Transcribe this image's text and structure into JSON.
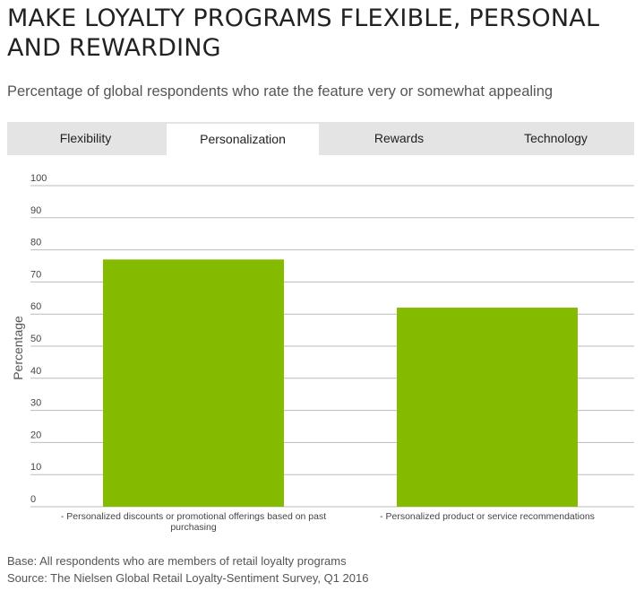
{
  "header": {
    "title": "MAKE LOYALTY PROGRAMS FLEXIBLE, PERSONAL AND REWARDING",
    "subtitle": "Percentage of global respondents who rate the feature very or somewhat appealing"
  },
  "tabs": [
    {
      "label": "Flexibility",
      "active": false
    },
    {
      "label": "Personalization",
      "active": true
    },
    {
      "label": "Rewards",
      "active": false
    },
    {
      "label": "Technology",
      "active": false
    }
  ],
  "chart_data": {
    "type": "bar",
    "categories": [
      "- Personalized discounts or promotional offerings based on past purchasing",
      "- Personalized product or service recommendations"
    ],
    "values": [
      77,
      62
    ],
    "title": "",
    "xlabel": "",
    "ylabel": "Percentage",
    "ylim": [
      0,
      100
    ],
    "yticks": [
      0,
      10,
      20,
      30,
      40,
      50,
      60,
      70,
      80,
      90,
      100
    ],
    "grid": true,
    "bar_color": "#84bb00",
    "grid_color": "#bbbbbb"
  },
  "footer": {
    "base": "Base: All respondents who are members of retail loyalty programs",
    "source": "Source: The Nielsen Global Retail Loyalty-Sentiment Survey, Q1 2016"
  }
}
